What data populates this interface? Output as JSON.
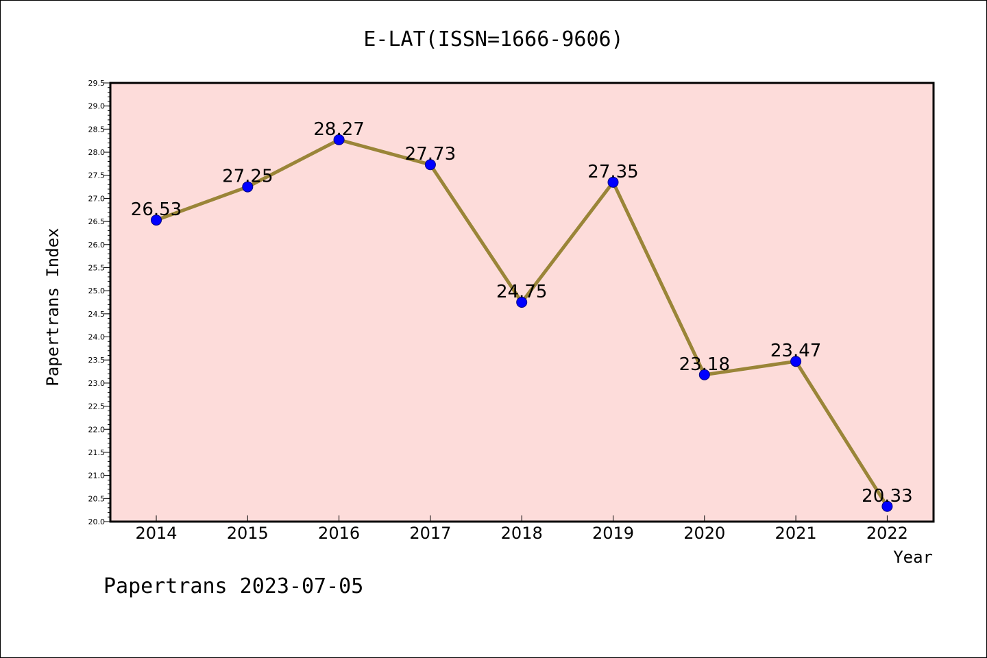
{
  "colors": {
    "plot_background": "#fddcda",
    "line": "#9a8538",
    "marker_fill": "#0000ff",
    "marker_stroke": "#000080",
    "axis": "#000000"
  },
  "footer": "Papertrans 2023-07-05",
  "chart_data": {
    "type": "line",
    "title": "E-LAT(ISSN=1666-9606)",
    "xlabel": "Year",
    "ylabel": "Papertrans Index",
    "categories": [
      "2014",
      "2015",
      "2016",
      "2017",
      "2018",
      "2019",
      "2020",
      "2021",
      "2022"
    ],
    "values": [
      26.53,
      27.25,
      28.27,
      27.73,
      24.75,
      27.35,
      23.18,
      23.47,
      20.33
    ],
    "data_labels": [
      "26.53",
      "27.25",
      "28.27",
      "27.73",
      "24.75",
      "27.35",
      "23.18",
      "23.47",
      "20.33"
    ],
    "ylim": [
      20.0,
      29.5
    ],
    "y_ticks": [
      "20.0",
      "20.5",
      "21.0",
      "21.5",
      "22.0",
      "22.5",
      "23.0",
      "23.5",
      "24.0",
      "24.5",
      "25.0",
      "25.5",
      "26.0",
      "26.5",
      "27.0",
      "27.5",
      "28.0",
      "28.5",
      "29.0",
      "29.5"
    ],
    "grid": false,
    "legend": "none"
  }
}
